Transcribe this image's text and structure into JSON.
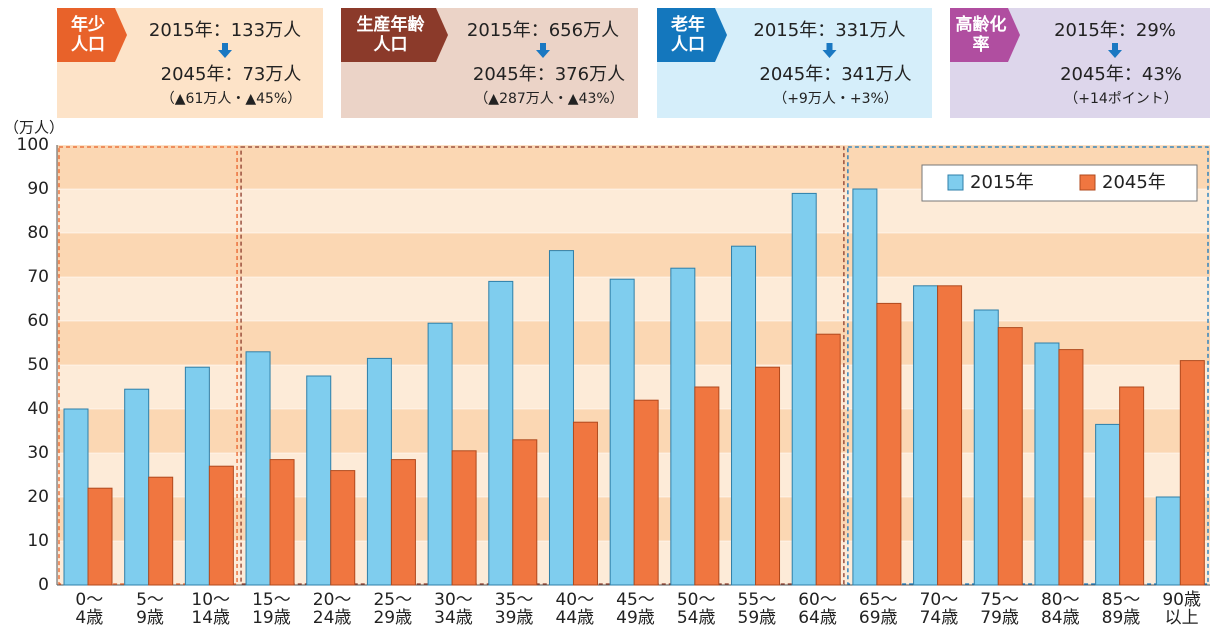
{
  "summary": [
    {
      "tag": "年少\n人口",
      "from": "2015年：133万人",
      "to": "2045年：73万人",
      "change": "（▲61万人・▲45%）",
      "color": "#e8622a",
      "bg": "#fde3c8"
    },
    {
      "tag": "生産年齢\n人口",
      "from": "2015年：656万人",
      "to": "2045年：376万人",
      "change": "（▲287万人・▲43%）",
      "color": "#8b3a2a",
      "bg": "#ebd3c7"
    },
    {
      "tag": "老年\n人口",
      "from": "2015年：331万人",
      "to": "2045年：341万人",
      "change": "（+9万人・+3%）",
      "color": "#1477bd",
      "bg": "#d5eefa"
    },
    {
      "tag": "高齢化\n率",
      "from": "2015年：29%",
      "to": "2045年：43%",
      "change": "（+14ポイント）",
      "color": "#b04ea0",
      "bg": "#ddd6eb"
    }
  ],
  "chart_data": {
    "type": "bar",
    "y_label": "（万人）",
    "categories": [
      "0～\n4歳",
      "5～\n9歳",
      "10～\n14歳",
      "15～\n19歳",
      "20～\n24歳",
      "25～\n29歳",
      "30～\n34歳",
      "35～\n39歳",
      "40～\n44歳",
      "45～\n49歳",
      "50～\n54歳",
      "55～\n59歳",
      "60～\n64歳",
      "65～\n69歳",
      "70～\n74歳",
      "75～\n79歳",
      "80～\n84歳",
      "85～\n89歳",
      "90歳\n以上"
    ],
    "series": [
      {
        "name": "2015年",
        "color": "#7fcdee",
        "values": [
          40,
          44.5,
          49.5,
          53,
          47.5,
          51.5,
          59.5,
          69,
          76,
          69.5,
          72,
          77,
          89,
          90,
          68,
          62.5,
          55,
          36.5,
          20
        ]
      },
      {
        "name": "2045年",
        "color": "#f07640",
        "values": [
          22,
          24.5,
          27,
          28.5,
          26,
          28.5,
          30.5,
          33,
          37,
          42,
          45,
          49.5,
          57,
          64,
          68,
          58.5,
          53.5,
          45,
          51
        ]
      }
    ],
    "ylim": [
      0,
      100
    ],
    "yticks": [
      0,
      10,
      20,
      30,
      40,
      50,
      60,
      70,
      80,
      90,
      100
    ],
    "grid": true,
    "legend": "top-right"
  }
}
